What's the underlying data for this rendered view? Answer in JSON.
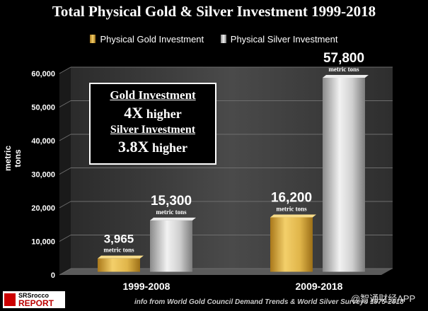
{
  "chart_data": {
    "type": "bar",
    "title": "Total Physical Gold & Silver Investment 1999-2018",
    "ylabel": "metric tons",
    "ylim": [
      0,
      60000
    ],
    "yticks": [
      "0",
      "10,000",
      "20,000",
      "30,000",
      "40,000",
      "50,000",
      "60,000"
    ],
    "categories": [
      "1999-2008",
      "2009-2018"
    ],
    "series": [
      {
        "name": "Physical Gold Investment",
        "values": [
          3965,
          16200
        ],
        "labels": [
          "3,965",
          "16,200"
        ],
        "color": "#d9a72f"
      },
      {
        "name": "Physical Silver Investment",
        "values": [
          15300,
          57800
        ],
        "labels": [
          "15,300",
          "57,800"
        ],
        "color": "#bfbfbf"
      }
    ],
    "value_unit_label": "metric tons",
    "legend_position": "top-center",
    "grid": true
  },
  "callout": {
    "line1": "Gold Investment",
    "line2_value": "4X",
    "line2_text": " higher",
    "line3": "Silver Investment",
    "line4_value": "3.8X",
    "line4_text": " higher"
  },
  "logo": {
    "top": "SRSrocco",
    "bottom": "REPORT"
  },
  "source": "info from World Gold Council Demand Trends & World Silver Surveys 1975-2018",
  "watermark": "@智通财经APP"
}
